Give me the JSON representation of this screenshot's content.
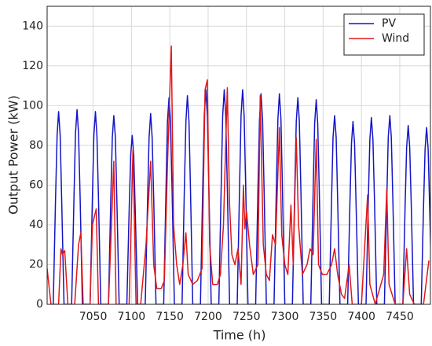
{
  "chart_data": {
    "type": "line",
    "x_label": "Time (h)",
    "y_label": "Output Power (kW)",
    "xlim": [
      6990,
      7490
    ],
    "xticks": [
      7050,
      7100,
      7150,
      7200,
      7250,
      7300,
      7350,
      7400,
      7450
    ],
    "ylim": [
      0,
      150
    ],
    "yticks": [
      0,
      20,
      40,
      60,
      80,
      100,
      120,
      140
    ],
    "grid": true,
    "legend": "upper right",
    "series": [
      {
        "name": "PV",
        "color": "#1414c8",
        "x": [
          6998,
          7001,
          7003,
          7005,
          7007,
          7009,
          7012,
          7022,
          7025,
          7027,
          7029,
          7031,
          7033,
          7036,
          7046,
          7049,
          7051,
          7053,
          7055,
          7057,
          7060,
          7070,
          7073,
          7075,
          7077,
          7079,
          7081,
          7084,
          7094,
          7097,
          7099,
          7101,
          7103,
          7105,
          7108,
          7118,
          7121,
          7123,
          7125,
          7127,
          7129,
          7132,
          7142,
          7145,
          7147,
          7149,
          7151,
          7153,
          7156,
          7166,
          7169,
          7171,
          7173,
          7175,
          7177,
          7180,
          7190,
          7193,
          7195,
          7197,
          7199,
          7201,
          7204,
          7214,
          7217,
          7219,
          7221,
          7223,
          7225,
          7228,
          7238,
          7241,
          7243,
          7245,
          7247,
          7249,
          7252,
          7262,
          7265,
          7267,
          7269,
          7271,
          7273,
          7276,
          7286,
          7289,
          7291,
          7293,
          7295,
          7297,
          7300,
          7310,
          7313,
          7315,
          7317,
          7319,
          7321,
          7324,
          7334,
          7337,
          7339,
          7341,
          7343,
          7345,
          7348,
          7358,
          7361,
          7363,
          7365,
          7367,
          7369,
          7372,
          7382,
          7385,
          7387,
          7389,
          7391,
          7393,
          7396,
          7406,
          7409,
          7411,
          7413,
          7415,
          7417,
          7420,
          7430,
          7433,
          7435,
          7437,
          7439,
          7441,
          7444,
          7454,
          7457,
          7459,
          7461,
          7463,
          7465,
          7468,
          7478,
          7481,
          7483,
          7485,
          7487,
          7489,
          7492
        ],
        "values": [
          0,
          53,
          85,
          97,
          85,
          53,
          0,
          0,
          54,
          86,
          98,
          86,
          54,
          0,
          0,
          53,
          85,
          97,
          85,
          53,
          0,
          0,
          52,
          84,
          95,
          84,
          52,
          0,
          0,
          47,
          75,
          85,
          75,
          47,
          0,
          0,
          53,
          84,
          96,
          84,
          53,
          0,
          0,
          57,
          92,
          104,
          92,
          57,
          0,
          0,
          58,
          92,
          105,
          92,
          58,
          0,
          0,
          59,
          95,
          108,
          95,
          59,
          0,
          0,
          59,
          95,
          108,
          95,
          59,
          0,
          0,
          59,
          95,
          108,
          95,
          59,
          0,
          0,
          58,
          93,
          106,
          93,
          58,
          0,
          0,
          58,
          93,
          106,
          93,
          58,
          0,
          0,
          57,
          92,
          104,
          92,
          57,
          0,
          0,
          57,
          91,
          103,
          91,
          57,
          0,
          0,
          52,
          84,
          95,
          84,
          52,
          0,
          0,
          51,
          81,
          92,
          81,
          51,
          0,
          0,
          52,
          83,
          94,
          83,
          52,
          0,
          0,
          52,
          84,
          95,
          84,
          52,
          0,
          0,
          50,
          79,
          90,
          79,
          50,
          0,
          0,
          49,
          78,
          89,
          78,
          49,
          0
        ]
      },
      {
        "name": "Wind",
        "color": "#e01818",
        "x": [
          6990,
          6995,
          7005,
          7008,
          7010,
          7013,
          7017,
          7026,
          7031,
          7034,
          7037,
          7046,
          7049,
          7054,
          7057,
          7070,
          7077,
          7080,
          7097,
          7102,
          7106,
          7112,
          7119,
          7125,
          7129,
          7133,
          7139,
          7143,
          7147,
          7152,
          7155,
          7159,
          7163,
          7167,
          7171,
          7174,
          7180,
          7186,
          7192,
          7196,
          7199,
          7202,
          7206,
          7212,
          7216,
          7220,
          7225,
          7228,
          7231,
          7235,
          7239,
          7243,
          7246,
          7248,
          7250,
          7254,
          7259,
          7265,
          7268,
          7272,
          7276,
          7280,
          7284,
          7288,
          7293,
          7296,
          7300,
          7304,
          7308,
          7311,
          7315,
          7318,
          7323,
          7329,
          7333,
          7337,
          7341,
          7344,
          7349,
          7355,
          7361,
          7365,
          7369,
          7374,
          7378,
          7384,
          7388,
          7400,
          7408,
          7411,
          7418,
          7429,
          7433,
          7436,
          7444,
          7454,
          7459,
          7463,
          7469,
          7481,
          7488
        ],
        "values": [
          18,
          0,
          0,
          28,
          25,
          27,
          0,
          0,
          30,
          36,
          0,
          0,
          40,
          48,
          0,
          0,
          72,
          0,
          0,
          78,
          0,
          0,
          30,
          72,
          20,
          8,
          8,
          12,
          70,
          130,
          40,
          20,
          10,
          20,
          36,
          15,
          10,
          12,
          18,
          108,
          113,
          30,
          10,
          10,
          15,
          40,
          109,
          50,
          25,
          20,
          28,
          10,
          60,
          38,
          47,
          30,
          15,
          20,
          105,
          30,
          15,
          12,
          35,
          30,
          89,
          35,
          20,
          15,
          50,
          20,
          84,
          40,
          15,
          20,
          28,
          25,
          83,
          20,
          15,
          15,
          20,
          28,
          15,
          5,
          3,
          20,
          0,
          0,
          55,
          10,
          0,
          15,
          58,
          10,
          0,
          0,
          28,
          5,
          0,
          0,
          22
        ]
      }
    ]
  }
}
